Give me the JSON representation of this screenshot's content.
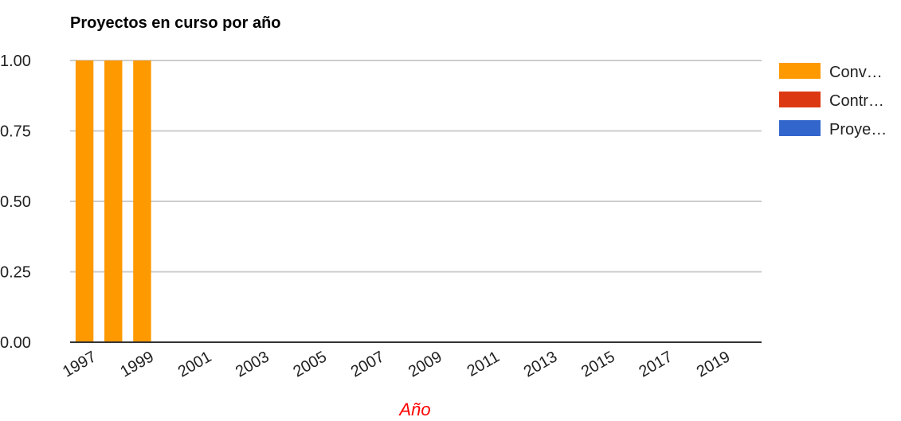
{
  "chart_data": {
    "type": "bar",
    "title": "Proyectos en curso por año",
    "xlabel": "Año",
    "ylabel": "",
    "ylim": [
      0,
      1
    ],
    "yticks": [
      "0.00",
      "0.25",
      "0.50",
      "0.75",
      "1.00"
    ],
    "grid": true,
    "legend_position": "right",
    "x_tick_labels": [
      "1997",
      "1999",
      "2001",
      "2003",
      "2005",
      "2007",
      "2009",
      "2011",
      "2013",
      "2015",
      "2017",
      "2019"
    ],
    "categories": [
      "1997",
      "1998",
      "1999",
      "2000",
      "2001",
      "2002",
      "2003",
      "2004",
      "2005",
      "2006",
      "2007",
      "2008",
      "2009",
      "2010",
      "2011",
      "2012",
      "2013",
      "2014",
      "2015",
      "2016",
      "2017",
      "2018",
      "2019",
      "2020"
    ],
    "series": [
      {
        "name": "Conv…",
        "color": "#ff9900",
        "values": [
          1,
          1,
          1,
          0,
          0,
          0,
          0,
          0,
          0,
          0,
          0,
          0,
          0,
          0,
          0,
          0,
          0,
          0,
          0,
          0,
          0,
          0,
          0,
          0
        ]
      },
      {
        "name": "Contr…",
        "color": "#dc3912",
        "values": [
          0,
          0,
          0,
          0,
          0,
          0,
          0,
          0,
          0,
          0,
          0,
          0,
          0,
          0,
          0,
          0,
          0,
          0,
          0,
          0,
          0,
          0,
          0,
          0
        ]
      },
      {
        "name": "Proye…",
        "color": "#3366cc",
        "values": [
          0,
          0,
          0,
          0,
          0,
          0,
          0,
          0,
          0,
          0,
          0,
          0,
          0,
          0,
          0,
          0,
          0,
          0,
          0,
          0,
          0,
          0,
          0,
          0
        ]
      }
    ],
    "colors": {
      "grid": "#cccccc",
      "baseline": "#333333",
      "xlabel": "#ff0000"
    }
  }
}
